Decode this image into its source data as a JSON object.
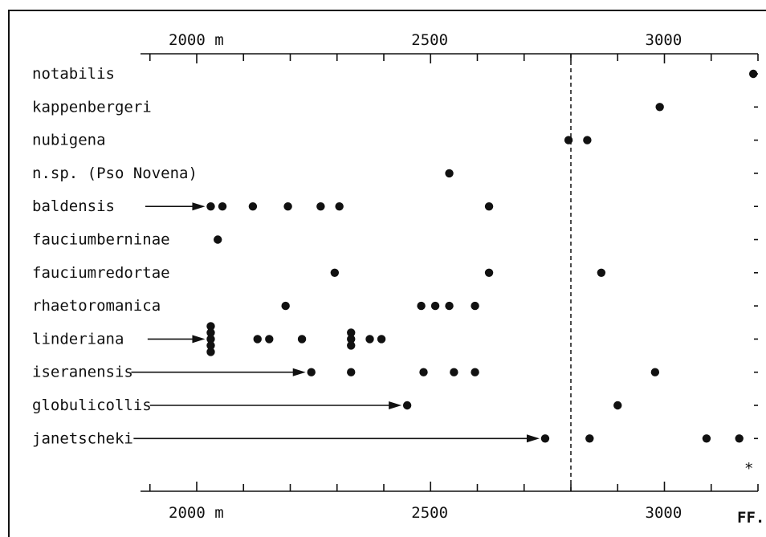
{
  "chart_data": {
    "type": "scatter",
    "title": "",
    "xlabel": "",
    "ylabel": "",
    "x_unit": "m",
    "xlim": [
      1880,
      3200
    ],
    "x_tick_labels_top": [
      {
        "value": 2000,
        "label": "2000 m"
      },
      {
        "value": 2500,
        "label": "2500"
      },
      {
        "value": 3000,
        "label": "3000"
      }
    ],
    "x_tick_labels_bottom": [
      {
        "value": 2000,
        "label": "2000 m"
      },
      {
        "value": 2500,
        "label": "2500"
      },
      {
        "value": 3000,
        "label": "3000"
      }
    ],
    "minor_tick_step": 100,
    "reference_line_x": 2800,
    "corner_mark": "FF.",
    "asterisk": "*",
    "series": [
      {
        "name": "notabilis",
        "values": [
          3190
        ],
        "arrow_from": null
      },
      {
        "name": "kappenbergeri",
        "values": [
          2990
        ],
        "arrow_from": null
      },
      {
        "name": "nubigena",
        "values": [
          2795,
          2835
        ],
        "arrow_from": null
      },
      {
        "name": "n.sp. (Pso Novena)",
        "values": [
          2540
        ],
        "arrow_from": null
      },
      {
        "name": "baldensis",
        "values": [
          2030,
          2055,
          2120,
          2195,
          2265,
          2305,
          2625
        ],
        "arrow_from": 1890
      },
      {
        "name": "fauciumberninae",
        "values": [
          2045
        ],
        "arrow_from": null
      },
      {
        "name": "fauciumredortae",
        "values": [
          2295,
          2625,
          2865
        ],
        "arrow_from": null
      },
      {
        "name": "rhaetoromanica",
        "values": [
          2190,
          2480,
          2510,
          2540,
          2595
        ],
        "arrow_from": null
      },
      {
        "name": "linderiana",
        "values": [
          2030,
          2030,
          2030,
          2030,
          2030,
          2130,
          2155,
          2225,
          2330,
          2330,
          2330,
          2370,
          2395
        ],
        "arrow_from": 1895
      },
      {
        "name": "iseranensis",
        "values": [
          2245,
          2330,
          2485,
          2550,
          2595,
          2980
        ],
        "arrow_from": 1860
      },
      {
        "name": "globulicollis",
        "values": [
          2450,
          2900
        ],
        "arrow_from": 1900
      },
      {
        "name": "janetscheki",
        "values": [
          2745,
          2840,
          3090,
          3160
        ],
        "arrow_from": 1865
      }
    ]
  }
}
